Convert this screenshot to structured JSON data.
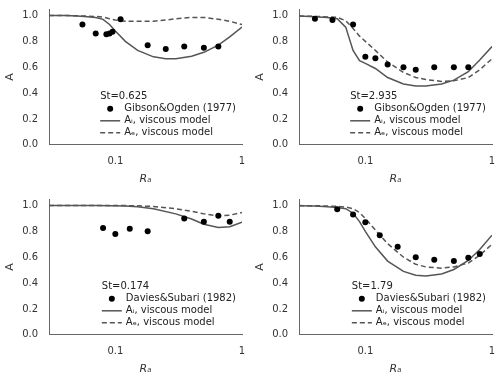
{
  "chart_data": [
    {
      "type": "line",
      "annotations": [
        "St=0.625"
      ],
      "xlabel": "Rₐ",
      "ylabel": "A",
      "log": "x",
      "xlim": [
        0.03,
        1.0
      ],
      "xticks": [
        0.1,
        1
      ],
      "ylim": [
        0.0,
        1.05
      ],
      "yticks": [
        {
          "value": 0,
          "label": "0.0"
        },
        0.2,
        0.4,
        0.6,
        0.8,
        {
          "value": 1,
          "label": "1.0"
        }
      ],
      "grid": false,
      "legend": "lower right",
      "series": [
        {
          "name": "Aᵢ, viscous model",
          "type": "line",
          "line_style": "solid",
          "color": "#555555",
          "x": [
            0.03,
            0.04,
            0.05,
            0.06,
            0.07,
            0.08,
            0.09,
            0.1,
            0.12,
            0.15,
            0.2,
            0.25,
            0.3,
            0.4,
            0.5,
            0.65,
            0.8,
            1.0
          ],
          "values": [
            1.0,
            1.0,
            0.995,
            0.99,
            0.985,
            0.97,
            0.93,
            0.88,
            0.8,
            0.73,
            0.68,
            0.665,
            0.665,
            0.685,
            0.715,
            0.77,
            0.835,
            0.91
          ]
        },
        {
          "name": "Aₑ, viscous model",
          "type": "line",
          "line_style": "dashed",
          "color": "#555555",
          "x": [
            0.03,
            0.04,
            0.05,
            0.06,
            0.07,
            0.08,
            0.09,
            0.1,
            0.12,
            0.15,
            0.2,
            0.25,
            0.3,
            0.4,
            0.5,
            0.65,
            0.8,
            1.0
          ],
          "values": [
            1.0,
            1.0,
            0.998,
            0.995,
            0.992,
            0.988,
            0.975,
            0.965,
            0.955,
            0.955,
            0.955,
            0.965,
            0.975,
            0.985,
            0.985,
            0.97,
            0.955,
            0.93
          ]
        },
        {
          "name": "Gibson&Ogden (1977)",
          "type": "scatter",
          "marker": "circle",
          "color": "#000000",
          "x": [
            0.055,
            0.07,
            0.085,
            0.09,
            0.095,
            0.11,
            0.18,
            0.25,
            0.35,
            0.5,
            0.65
          ],
          "values": [
            0.93,
            0.86,
            0.855,
            0.86,
            0.875,
            0.97,
            0.77,
            0.74,
            0.76,
            0.75,
            0.76
          ]
        }
      ]
    },
    {
      "type": "line",
      "annotations": [
        "St=2.935"
      ],
      "xlabel": "Rₐ",
      "ylabel": "A",
      "log": "x",
      "xlim": [
        0.03,
        1.0
      ],
      "xticks": [
        0.1,
        1
      ],
      "ylim": [
        0.0,
        1.05
      ],
      "yticks": [
        {
          "value": 0,
          "label": "0.0"
        },
        0.2,
        0.4,
        0.6,
        0.8,
        {
          "value": 1,
          "label": "1.0"
        }
      ],
      "grid": false,
      "legend": "lower right",
      "series": [
        {
          "name": "Aᵢ, viscous model",
          "type": "line",
          "line_style": "solid",
          "color": "#555555",
          "x": [
            0.03,
            0.04,
            0.05,
            0.06,
            0.07,
            0.08,
            0.09,
            0.1,
            0.12,
            0.15,
            0.2,
            0.25,
            0.3,
            0.4,
            0.5,
            0.65,
            0.8,
            1.0
          ],
          "values": [
            0.995,
            0.99,
            0.985,
            0.975,
            0.91,
            0.73,
            0.65,
            0.63,
            0.59,
            0.52,
            0.47,
            0.455,
            0.455,
            0.47,
            0.5,
            0.565,
            0.655,
            0.76
          ]
        },
        {
          "name": "Aₑ, viscous model",
          "type": "line",
          "line_style": "dashed",
          "color": "#555555",
          "x": [
            0.03,
            0.04,
            0.05,
            0.06,
            0.07,
            0.08,
            0.09,
            0.1,
            0.12,
            0.15,
            0.2,
            0.25,
            0.3,
            0.4,
            0.5,
            0.65,
            0.8,
            1.0
          ],
          "values": [
            0.995,
            0.993,
            0.989,
            0.985,
            0.96,
            0.9,
            0.84,
            0.8,
            0.73,
            0.64,
            0.56,
            0.52,
            0.505,
            0.49,
            0.495,
            0.52,
            0.58,
            0.665
          ]
        },
        {
          "name": "Gibson&Ogden (1977)",
          "type": "scatter",
          "marker": "circle",
          "color": "#000000",
          "x": [
            0.04,
            0.055,
            0.08,
            0.1,
            0.12,
            0.15,
            0.2,
            0.25,
            0.35,
            0.5,
            0.65
          ],
          "values": [
            0.975,
            0.965,
            0.93,
            0.68,
            0.67,
            0.62,
            0.6,
            0.58,
            0.6,
            0.6,
            0.6
          ]
        }
      ]
    },
    {
      "type": "line",
      "annotations": [
        "St=0.174"
      ],
      "xlabel": "Rₐ",
      "ylabel": "A",
      "log": "x",
      "xlim": [
        0.03,
        1.0
      ],
      "xticks": [
        0.1,
        1
      ],
      "ylim": [
        0.0,
        1.05
      ],
      "yticks": [
        {
          "value": 0,
          "label": "0.0"
        },
        0.2,
        0.4,
        0.6,
        0.8,
        {
          "value": 1,
          "label": "1.0"
        }
      ],
      "grid": false,
      "legend": "lower right",
      "series": [
        {
          "name": "Aᵢ, viscous model",
          "type": "line",
          "line_style": "solid",
          "color": "#555555",
          "x": [
            0.03,
            0.05,
            0.07,
            0.09,
            0.12,
            0.15,
            0.2,
            0.3,
            0.4,
            0.5,
            0.65,
            0.8,
            1.0
          ],
          "values": [
            1.0,
            1.0,
            0.999,
            0.998,
            0.995,
            0.99,
            0.975,
            0.935,
            0.895,
            0.855,
            0.83,
            0.835,
            0.87
          ]
        },
        {
          "name": "Aₑ, viscous model",
          "type": "line",
          "line_style": "dashed",
          "color": "#555555",
          "x": [
            0.03,
            0.05,
            0.07,
            0.09,
            0.12,
            0.15,
            0.2,
            0.3,
            0.4,
            0.5,
            0.65,
            0.8,
            1.0
          ],
          "values": [
            1.0,
            1.0,
            0.9998,
            0.9995,
            0.999,
            0.997,
            0.992,
            0.975,
            0.955,
            0.935,
            0.92,
            0.925,
            0.945
          ]
        },
        {
          "name": "Davies&Subari (1982)",
          "type": "scatter",
          "marker": "circle",
          "color": "#000000",
          "x": [
            0.08,
            0.1,
            0.13,
            0.18,
            0.35,
            0.5,
            0.65,
            0.8
          ],
          "values": [
            0.825,
            0.78,
            0.82,
            0.8,
            0.9,
            0.875,
            0.92,
            0.875
          ]
        }
      ]
    },
    {
      "type": "line",
      "annotations": [
        "St=1.79"
      ],
      "xlabel": "Rₐ",
      "ylabel": "A",
      "log": "x",
      "xlim": [
        0.03,
        1.0
      ],
      "xticks": [
        0.1,
        1
      ],
      "ylim": [
        0.0,
        1.05
      ],
      "yticks": [
        {
          "value": 0,
          "label": "0.0"
        },
        0.2,
        0.4,
        0.6,
        0.8,
        {
          "value": 1,
          "label": "1.0"
        }
      ],
      "grid": false,
      "legend": "lower right",
      "series": [
        {
          "name": "Aᵢ, viscous model",
          "type": "line",
          "line_style": "solid",
          "color": "#555555",
          "x": [
            0.03,
            0.04,
            0.05,
            0.06,
            0.07,
            0.08,
            0.09,
            0.1,
            0.12,
            0.15,
            0.2,
            0.25,
            0.3,
            0.4,
            0.5,
            0.65,
            0.8,
            1.0
          ],
          "values": [
            0.998,
            0.995,
            0.99,
            0.985,
            0.975,
            0.94,
            0.875,
            0.8,
            0.68,
            0.57,
            0.49,
            0.46,
            0.455,
            0.47,
            0.505,
            0.575,
            0.66,
            0.77
          ]
        },
        {
          "name": "Aₑ, viscous model",
          "type": "line",
          "line_style": "dashed",
          "color": "#555555",
          "x": [
            0.03,
            0.04,
            0.05,
            0.06,
            0.07,
            0.08,
            0.09,
            0.1,
            0.12,
            0.15,
            0.2,
            0.25,
            0.3,
            0.4,
            0.5,
            0.65,
            0.8,
            1.0
          ],
          "values": [
            0.999,
            0.998,
            0.996,
            0.993,
            0.988,
            0.975,
            0.945,
            0.9,
            0.81,
            0.705,
            0.6,
            0.545,
            0.525,
            0.515,
            0.525,
            0.555,
            0.615,
            0.7
          ]
        },
        {
          "name": "Davies&Subari (1982)",
          "type": "scatter",
          "marker": "circle",
          "color": "#000000",
          "x": [
            0.06,
            0.08,
            0.1,
            0.13,
            0.18,
            0.25,
            0.35,
            0.5,
            0.65,
            0.8
          ],
          "values": [
            0.97,
            0.93,
            0.87,
            0.77,
            0.68,
            0.6,
            0.58,
            0.57,
            0.595,
            0.625
          ]
        }
      ]
    }
  ]
}
